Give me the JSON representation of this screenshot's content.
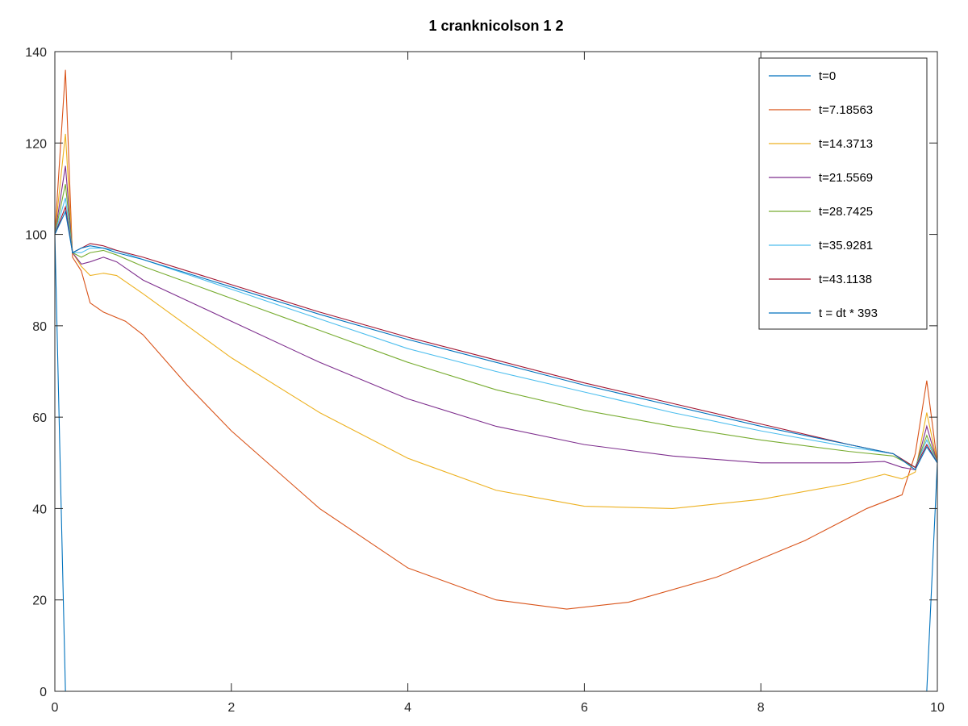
{
  "chart_data": {
    "type": "line",
    "title": "1 cranknicolson 1 2",
    "xlabel": "",
    "ylabel": "",
    "xlim": [
      0,
      10
    ],
    "ylim": [
      0,
      140
    ],
    "xticks": [
      "0",
      "2",
      "4",
      "6",
      "8",
      "10"
    ],
    "yticks": [
      "0",
      "20",
      "40",
      "60",
      "80",
      "100",
      "120",
      "140"
    ],
    "grid": false,
    "legend_position": "top-right",
    "series": [
      {
        "name": "t=0",
        "color": "#0072BD",
        "x": [
          0,
          0.12,
          9.88,
          10
        ],
        "y": [
          100,
          0,
          0,
          50
        ]
      },
      {
        "name": "t=7.18563",
        "color": "#D95319",
        "x": [
          0,
          0.12,
          0.2,
          0.3,
          0.4,
          0.55,
          0.8,
          1.0,
          1.5,
          2.0,
          3.0,
          4.0,
          5.0,
          5.8,
          6.5,
          7.5,
          8.5,
          9.2,
          9.6,
          9.75,
          9.88,
          10
        ],
        "y": [
          100,
          136,
          95,
          92,
          85,
          83,
          81,
          78,
          67,
          57,
          40,
          27,
          20,
          18,
          19.5,
          25,
          33,
          40,
          43,
          52,
          68,
          50
        ]
      },
      {
        "name": "t=14.3713",
        "color": "#EDB120",
        "x": [
          0,
          0.12,
          0.2,
          0.3,
          0.4,
          0.55,
          0.7,
          1.0,
          2.0,
          3.0,
          4.0,
          5.0,
          6.0,
          7.0,
          8.0,
          9.0,
          9.4,
          9.6,
          9.75,
          9.88,
          10
        ],
        "y": [
          100,
          122,
          96,
          93,
          91,
          91.5,
          91,
          87,
          73,
          61,
          51,
          44,
          40.5,
          40,
          42,
          45.5,
          47.5,
          46.5,
          48,
          61,
          50
        ]
      },
      {
        "name": "t=21.5569",
        "color": "#7E2F8E",
        "x": [
          0,
          0.12,
          0.2,
          0.3,
          0.4,
          0.55,
          0.7,
          1.0,
          2.0,
          3.0,
          4.0,
          5.0,
          6.0,
          7.0,
          8.0,
          9.0,
          9.4,
          9.6,
          9.75,
          9.88,
          10
        ],
        "y": [
          100,
          115,
          96,
          93.5,
          94,
          95,
          94,
          90,
          81,
          72,
          64,
          58,
          54,
          51.5,
          50,
          50,
          50.3,
          49,
          48.5,
          58,
          50
        ]
      },
      {
        "name": "t=28.7425",
        "color": "#77AC30",
        "x": [
          0,
          0.12,
          0.2,
          0.3,
          0.4,
          0.55,
          0.7,
          1.0,
          2.0,
          3.0,
          4.0,
          5.0,
          6.0,
          7.0,
          8.0,
          9.0,
          9.5,
          9.75,
          9.88,
          10
        ],
        "y": [
          100,
          111,
          96,
          95,
          96,
          96.5,
          95.5,
          93,
          86,
          79,
          72,
          66,
          61.5,
          58,
          55,
          52.5,
          51.5,
          49,
          56,
          50
        ]
      },
      {
        "name": "t=35.9281",
        "color": "#4DBEEE",
        "x": [
          0,
          0.12,
          0.2,
          0.3,
          0.4,
          0.55,
          0.7,
          1.0,
          2.0,
          3.0,
          4.0,
          5.0,
          6.0,
          7.0,
          8.0,
          9.0,
          9.5,
          9.75,
          9.88,
          10
        ],
        "y": [
          100,
          108,
          96,
          96,
          97,
          97,
          96.5,
          94.5,
          88,
          81.5,
          75,
          70,
          65.5,
          61,
          57,
          53.5,
          52,
          49,
          55,
          50
        ]
      },
      {
        "name": "t=43.1138",
        "color": "#A2142F",
        "x": [
          0,
          0.12,
          0.2,
          0.3,
          0.4,
          0.55,
          0.7,
          1.0,
          2.0,
          3.0,
          4.0,
          5.0,
          6.0,
          7.0,
          8.0,
          9.0,
          9.5,
          9.75,
          9.88,
          10
        ],
        "y": [
          100,
          106,
          96,
          97,
          98,
          97.5,
          96.5,
          95,
          89,
          83,
          77.5,
          72.5,
          67.5,
          63,
          58.5,
          54,
          52,
          49,
          54,
          50
        ]
      },
      {
        "name": "t = dt * 393",
        "color": "#0072BD",
        "x": [
          0,
          0.12,
          0.2,
          0.3,
          0.4,
          0.55,
          0.7,
          1.0,
          2.0,
          3.0,
          4.0,
          5.0,
          6.0,
          7.0,
          8.0,
          9.0,
          9.5,
          9.75,
          9.88,
          10
        ],
        "y": [
          100,
          105,
          96,
          97,
          97.5,
          97,
          96,
          94.5,
          88.5,
          82.5,
          77,
          72,
          67,
          62.5,
          58,
          54,
          52,
          48.5,
          53.5,
          50
        ]
      }
    ]
  }
}
